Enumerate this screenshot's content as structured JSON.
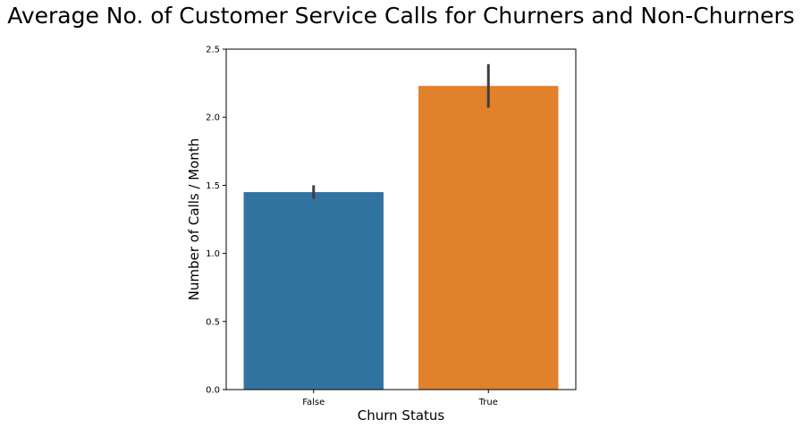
{
  "chart_data": {
    "type": "bar",
    "title": "Average No. of Customer Service Calls for Churners and Non-Churners",
    "xlabel": "Churn Status",
    "ylabel": "Number of Calls / Month",
    "categories": [
      "False",
      "True"
    ],
    "values": [
      1.45,
      2.23
    ],
    "error_bars": [
      {
        "low": 1.4,
        "high": 1.5
      },
      {
        "low": 2.07,
        "high": 2.39
      }
    ],
    "colors": [
      "#3274a1",
      "#e1812c"
    ],
    "ylim": [
      0,
      2.5
    ],
    "yticks": [
      "0.0",
      "0.5",
      "1.0",
      "1.5",
      "2.0",
      "2.5"
    ],
    "grid": false,
    "legend": "none"
  }
}
